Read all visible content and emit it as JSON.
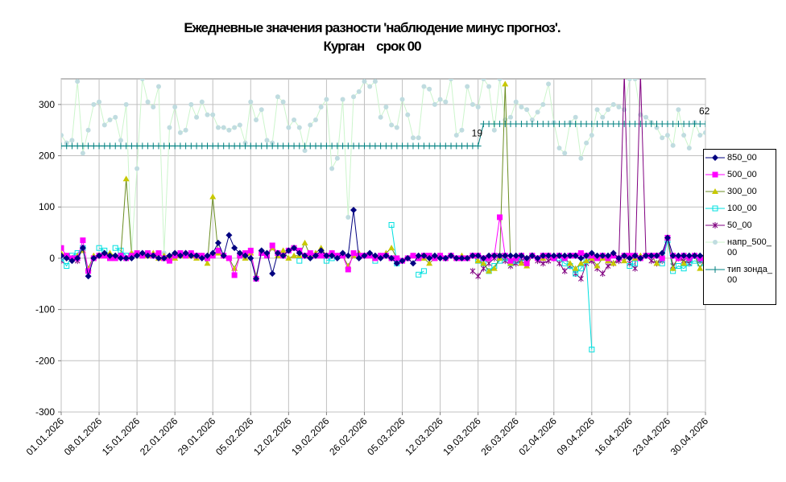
{
  "chart_data": {
    "type": "line",
    "title": "Ежедневные значения разности 'наблюдение минус прогноз'.",
    "subtitle": "Курган    срок 00",
    "categories": [
      "01.01.2026",
      null,
      null,
      null,
      null,
      null,
      null,
      "08.01.2026",
      null,
      null,
      null,
      null,
      null,
      null,
      "15.01.2026",
      null,
      null,
      null,
      null,
      null,
      null,
      "22.01.2026",
      null,
      null,
      null,
      null,
      null,
      null,
      "29.01.2026",
      null,
      null,
      null,
      null,
      null,
      null,
      "05.02.2026",
      null,
      null,
      null,
      null,
      null,
      null,
      "12.02.2026",
      null,
      null,
      null,
      null,
      null,
      null,
      "19.02.2026",
      null,
      null,
      null,
      null,
      null,
      null,
      "26.02.2026",
      null,
      null,
      null,
      null,
      null,
      null,
      "05.03.2026",
      null,
      null,
      null,
      null,
      null,
      null,
      "12.03.2026",
      null,
      null,
      null,
      null,
      null,
      null,
      "19.03.2026",
      null,
      null,
      null,
      null,
      null,
      null,
      "26.03.2026",
      null,
      null,
      null,
      null,
      null,
      null,
      "02.04.2026",
      null,
      null,
      null,
      null,
      null,
      null,
      "09.04.2026",
      null,
      null,
      null,
      null,
      null,
      null,
      "16.04.2026",
      null,
      null,
      null,
      null,
      null,
      null,
      "23.04.2026",
      null,
      null,
      null,
      null,
      null,
      null,
      "30.04.2026"
    ],
    "ylim": [
      -300,
      350
    ],
    "yticks": [
      -300,
      -200,
      -100,
      0,
      100,
      200,
      300
    ],
    "grid": true,
    "legend": "right",
    "annotations": [
      "19",
      "62"
    ],
    "series": [
      {
        "name": "850_00",
        "color": "#000080",
        "marker": "diamond",
        "values": [
          5,
          0,
          -5,
          0,
          20,
          -35,
          0,
          5,
          10,
          5,
          5,
          0,
          0,
          0,
          5,
          10,
          5,
          5,
          0,
          0,
          5,
          10,
          5,
          10,
          5,
          5,
          0,
          5,
          10,
          30,
          5,
          45,
          20,
          10,
          5,
          0,
          -40,
          15,
          10,
          -30,
          10,
          5,
          15,
          20,
          10,
          5,
          0,
          5,
          15,
          5,
          5,
          0,
          10,
          5,
          94,
          0,
          5,
          10,
          5,
          0,
          5,
          0,
          -10,
          -5,
          0,
          -10,
          5,
          5,
          0,
          5,
          0,
          0,
          5,
          0,
          0,
          0,
          5,
          5,
          0,
          5,
          5,
          5,
          5,
          5,
          5,
          5,
          0,
          5,
          0,
          5,
          5,
          5,
          5,
          5,
          5,
          5,
          0,
          5,
          10,
          5,
          5,
          5,
          10,
          0,
          5,
          0,
          5,
          0,
          5,
          5,
          5,
          10,
          40,
          5,
          5,
          5,
          5,
          5,
          5,
          5
        ]
      },
      {
        "name": "500_00",
        "color": "#ff00ff",
        "marker": "square",
        "values": [
          20,
          5,
          0,
          0,
          35,
          -25,
          0,
          5,
          5,
          0,
          0,
          5,
          0,
          5,
          10,
          5,
          10,
          5,
          10,
          0,
          -5,
          5,
          10,
          5,
          10,
          5,
          5,
          0,
          5,
          15,
          5,
          0,
          -33,
          5,
          10,
          15,
          -40,
          10,
          5,
          25,
          10,
          5,
          15,
          20,
          15,
          5,
          10,
          5,
          5,
          5,
          10,
          5,
          5,
          -22,
          10,
          5,
          5,
          5,
          0,
          5,
          5,
          0,
          0,
          -5,
          0,
          5,
          0,
          5,
          5,
          0,
          5,
          0,
          5,
          0,
          0,
          0,
          5,
          5,
          0,
          0,
          5,
          80,
          5,
          -5,
          0,
          5,
          -10,
          5,
          0,
          5,
          5,
          0,
          5,
          0,
          5,
          5,
          10,
          5,
          5,
          0,
          5,
          0,
          5,
          0,
          5,
          5,
          5,
          0,
          5,
          5,
          5,
          0,
          40,
          5,
          0,
          5,
          0,
          5,
          0,
          -5
        ]
      },
      {
        "name": "300_00",
        "color": "#c8c800",
        "line_color": "#6b8e23",
        "marker": "triangle",
        "values": [
          10,
          5,
          0,
          5,
          15,
          -20,
          5,
          5,
          10,
          10,
          5,
          5,
          155,
          10,
          10,
          5,
          5,
          10,
          0,
          5,
          5,
          0,
          5,
          10,
          5,
          0,
          5,
          -10,
          120,
          10,
          5,
          0,
          -20,
          5,
          0,
          10,
          -35,
          10,
          5,
          20,
          5,
          15,
          0,
          5,
          5,
          30,
          5,
          10,
          20,
          5,
          10,
          5,
          5,
          -15,
          5,
          10,
          5,
          5,
          0,
          5,
          10,
          20,
          0,
          -5,
          0,
          5,
          0,
          0,
          -10,
          0,
          5,
          0,
          5,
          0,
          5,
          0,
          5,
          -5,
          -10,
          -25,
          -20,
          0,
          340,
          -10,
          0,
          -10,
          -15,
          5,
          0,
          0,
          5,
          5,
          5,
          0,
          -10,
          -20,
          -10,
          -5,
          0,
          -15,
          0,
          -5,
          -10,
          0,
          -5,
          5,
          0,
          5,
          5,
          5,
          -10,
          5,
          40,
          -20,
          5,
          -10,
          0,
          5,
          -20,
          5
        ]
      },
      {
        "name": "100_00",
        "color": "#00e0e0",
        "marker": "open-square",
        "values": [
          0,
          -15,
          5,
          10,
          20,
          null,
          null,
          20,
          15,
          null,
          20,
          15,
          5,
          null,
          null,
          null,
          null,
          null,
          null,
          null,
          null,
          null,
          null,
          null,
          null,
          null,
          null,
          null,
          null,
          null,
          null,
          null,
          null,
          5,
          null,
          null,
          null,
          null,
          null,
          null,
          null,
          null,
          null,
          null,
          -5,
          null,
          null,
          null,
          null,
          -5,
          0,
          null,
          null,
          null,
          null,
          5,
          null,
          null,
          -5,
          null,
          null,
          65,
          -10,
          null,
          null,
          null,
          -32,
          -25,
          null,
          null,
          null,
          null,
          null,
          null,
          null,
          null,
          null,
          -5,
          -10,
          -25,
          -15,
          -5,
          0,
          -10,
          -5,
          0,
          null,
          null,
          null,
          null,
          null,
          null,
          0,
          -10,
          -15,
          -30,
          -20,
          -5,
          -178,
          null,
          null,
          null,
          null,
          null,
          null,
          -15,
          -10,
          null,
          null,
          null,
          null,
          -10,
          35,
          -25,
          -15,
          -20,
          -10,
          -5,
          -10,
          0
        ]
      },
      {
        "name": "50_00",
        "color": "#800080",
        "marker": "star",
        "values": [
          -5,
          null,
          null,
          -5,
          20,
          null,
          null,
          null,
          null,
          null,
          null,
          null,
          null,
          null,
          null,
          null,
          null,
          null,
          null,
          null,
          null,
          null,
          null,
          null,
          null,
          null,
          null,
          null,
          null,
          null,
          null,
          null,
          null,
          null,
          null,
          null,
          null,
          null,
          null,
          null,
          null,
          null,
          null,
          null,
          null,
          null,
          null,
          null,
          null,
          null,
          null,
          null,
          null,
          null,
          null,
          null,
          null,
          null,
          null,
          null,
          null,
          null,
          null,
          null,
          null,
          null,
          null,
          null,
          null,
          null,
          null,
          null,
          null,
          null,
          null,
          null,
          -25,
          -35,
          -20,
          -10,
          0,
          5,
          -5,
          -15,
          -10,
          -5,
          0,
          5,
          -5,
          -10,
          -5,
          0,
          -10,
          -25,
          -15,
          -30,
          -40,
          -10,
          -5,
          -20,
          -30,
          -15,
          -10,
          -5,
          360,
          -10,
          -20,
          360,
          5,
          -5,
          -10,
          -5,
          40,
          -15,
          0,
          -5,
          -10,
          5,
          -5,
          0
        ]
      },
      {
        "name": "напр_500_00",
        "color": "#c0dce0",
        "line_color": "#ccf5cc",
        "marker": "circle",
        "values": [
          240,
          225,
          230,
          345,
          205,
          250,
          300,
          305,
          260,
          270,
          275,
          230,
          300,
          10,
          175,
          350,
          305,
          295,
          335,
          10,
          255,
          295,
          245,
          250,
          300,
          275,
          305,
          280,
          280,
          255,
          255,
          250,
          255,
          260,
          225,
          305,
          270,
          290,
          230,
          225,
          315,
          305,
          255,
          270,
          255,
          210,
          260,
          270,
          295,
          310,
          175,
          195,
          310,
          80,
          315,
          325,
          345,
          335,
          345,
          275,
          295,
          260,
          255,
          310,
          280,
          235,
          235,
          335,
          330,
          300,
          310,
          305,
          350,
          240,
          250,
          335,
          300,
          295,
          350,
          335,
          250,
          350,
          270,
          275,
          305,
          295,
          290,
          270,
          285,
          300,
          340,
          265,
          215,
          205,
          265,
          275,
          195,
          225,
          240,
          290,
          275,
          290,
          300,
          295,
          290,
          350,
          350,
          280,
          275,
          265,
          255,
          235,
          240,
          220,
          290,
          240,
          215,
          265,
          240,
          245
        ]
      },
      {
        "name": "тип зонда_00",
        "color": "#008080",
        "marker": "plus",
        "values": [
          219,
          219,
          219,
          219,
          219,
          219,
          219,
          219,
          219,
          219,
          219,
          219,
          219,
          219,
          219,
          219,
          219,
          219,
          219,
          219,
          219,
          219,
          219,
          219,
          219,
          219,
          219,
          219,
          219,
          219,
          219,
          219,
          219,
          219,
          219,
          219,
          219,
          219,
          219,
          219,
          219,
          219,
          219,
          219,
          219,
          219,
          219,
          219,
          219,
          219,
          219,
          219,
          219,
          219,
          219,
          219,
          219,
          219,
          219,
          219,
          219,
          219,
          219,
          219,
          219,
          219,
          219,
          219,
          219,
          219,
          219,
          219,
          219,
          219,
          219,
          219,
          219,
          219,
          262,
          262,
          262,
          262,
          262,
          262,
          262,
          262,
          262,
          262,
          262,
          262,
          262,
          262,
          262,
          262,
          262,
          262,
          262,
          262,
          262,
          262,
          262,
          262,
          262,
          262,
          262,
          262,
          262,
          262,
          262,
          262,
          262,
          262,
          262,
          262,
          262,
          262,
          262,
          262,
          262,
          262
        ]
      }
    ]
  }
}
